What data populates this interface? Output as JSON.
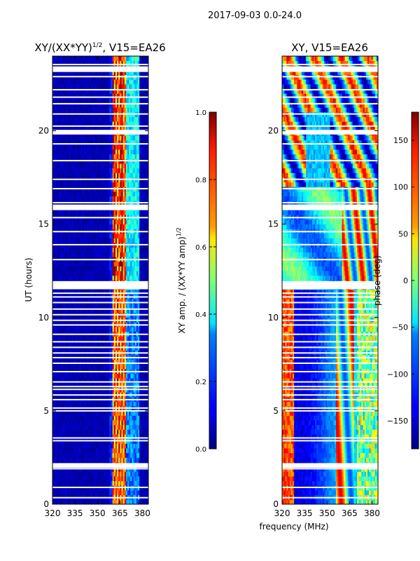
{
  "suptitle": "2017-09-03 0.0-24.0",
  "colors": {
    "white": "#ffffff",
    "axis": "#000000",
    "gap": "#ffffff"
  },
  "chart_data": [
    {
      "type": "heatmap",
      "title": "XY/(XX*YY)^1/2, V15=EA26",
      "title_main": "XY/(XX*YY)",
      "title_sup": "1/2",
      "title_tail": ", V15=EA26",
      "xlabel": "",
      "ylabel": "UT (hours)",
      "xlim": [
        320,
        384
      ],
      "ylim": [
        0,
        24
      ],
      "xticks": [
        320,
        335,
        350,
        365,
        380
      ],
      "yticks": [
        0,
        5,
        10,
        15,
        20
      ],
      "colormap": "jet",
      "description_of_values": "mostly near 0.0 (dark blue); bright band 0.4-1.0 between ~360 and ~368 MHz, moderate 0.2-0.4 near 370-378 MHz",
      "colorbar": {
        "label": "XY amp. / (XX*YY amp)^1/2",
        "label_main": "XY amp. / (XX*YY amp)",
        "label_sup": "1/2",
        "range": [
          0.0,
          1.0
        ],
        "ticks": [
          "0.0",
          "0.2",
          "0.4",
          "0.6",
          "0.8",
          "1.0"
        ]
      }
    },
    {
      "type": "heatmap",
      "title": "XY, V15=EA26",
      "xlabel": "frequency (MHz)",
      "ylabel": "",
      "xlim": [
        320,
        384
      ],
      "ylim": [
        0,
        24
      ],
      "xticks": [
        320,
        335,
        350,
        365,
        380
      ],
      "yticks": [
        0,
        5,
        10,
        15,
        20
      ],
      "colormap": "jet",
      "description_of_values": "phase varying across band; blue around 340-355 MHz in early hours, mixed red/yellow/cyan after ~13 h",
      "colorbar": {
        "label": "phase (deg)",
        "range": [
          -180,
          180
        ],
        "ticks": [
          "150",
          "100",
          "50",
          "0",
          "−50",
          "−100",
          "−150"
        ],
        "tick_values": [
          150,
          100,
          50,
          0,
          -50,
          -100,
          -150
        ]
      }
    }
  ],
  "time_gaps_hours": [
    0.35,
    0.9,
    1.9,
    2.15,
    3.4,
    3.55,
    5.0,
    5.15,
    5.6,
    5.85,
    6.15,
    6.3,
    6.55,
    7.1,
    7.55,
    7.85,
    8.1,
    8.4,
    8.7,
    9.1,
    9.6,
    9.85,
    10.15,
    10.45,
    10.8,
    11.1,
    11.3,
    11.55,
    13.1,
    13.9,
    14.6,
    15.35,
    15.8,
    16.15,
    16.9,
    17.4,
    18.4,
    19.3,
    19.95,
    20.25,
    20.9,
    21.45,
    21.8,
    22.2,
    22.9,
    23.3,
    23.55
  ]
}
